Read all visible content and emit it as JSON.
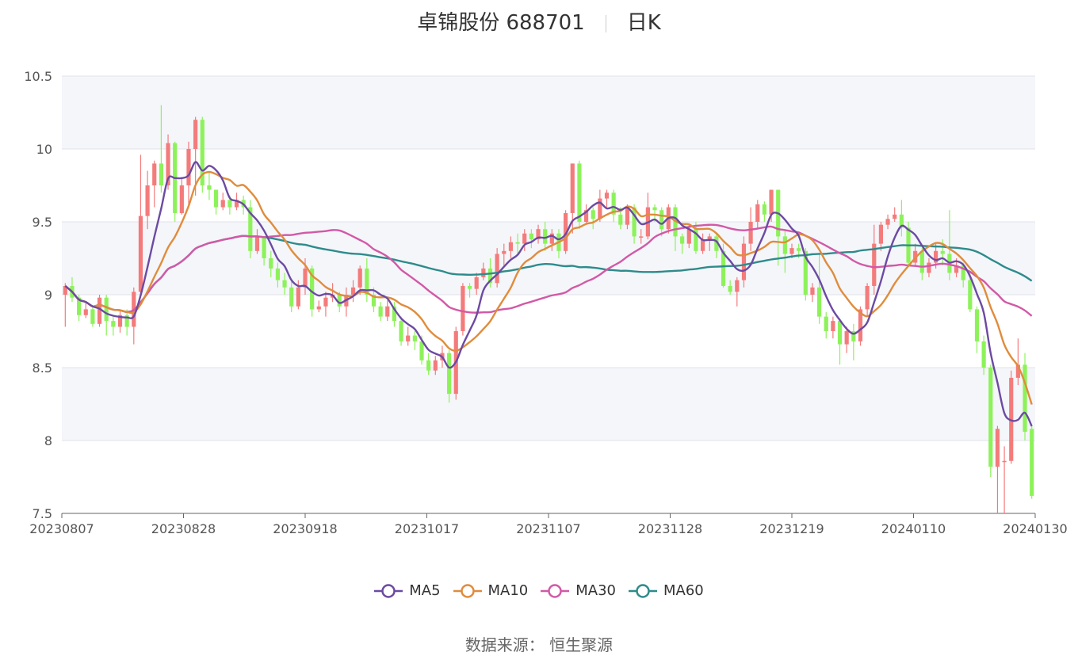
{
  "title": {
    "name": "卓锦股份 688701",
    "period": "日K"
  },
  "source_label": "数据来源：  恒生聚源",
  "colors": {
    "up": "#f47b7b",
    "down": "#8df25a",
    "ma5": "#6c4aa2",
    "ma10": "#e08c3c",
    "ma30": "#d259a6",
    "ma60": "#2e8b8b",
    "grid_band": "#f4f6fa",
    "grid_line": "#dfe3ea"
  },
  "chart_data": {
    "type": "candlestick",
    "x_ticks": [
      "20230807",
      "20230828",
      "20230918",
      "20231017",
      "20231107",
      "20231128",
      "20231219",
      "20240110",
      "20240130"
    ],
    "y_ticks": [
      "7.5",
      "8",
      "8.5",
      "9",
      "9.5",
      "10",
      "10.5"
    ],
    "ylim": [
      7.5,
      10.5
    ],
    "legend": [
      "MA5",
      "MA10",
      "MA30",
      "MA60"
    ],
    "candles": [
      [
        9.0,
        9.06,
        8.78,
        9.08
      ],
      [
        9.06,
        8.98,
        8.95,
        9.12
      ],
      [
        8.98,
        8.86,
        8.82,
        9.0
      ],
      [
        8.86,
        8.9,
        8.84,
        8.95
      ],
      [
        8.9,
        8.8,
        8.78,
        8.92
      ],
      [
        8.8,
        8.98,
        8.78,
        9.0
      ],
      [
        8.98,
        8.82,
        8.72,
        9.0
      ],
      [
        8.82,
        8.78,
        8.72,
        8.85
      ],
      [
        8.78,
        8.86,
        8.74,
        8.9
      ],
      [
        8.86,
        8.78,
        8.72,
        8.9
      ],
      [
        8.78,
        9.02,
        8.66,
        9.05
      ],
      [
        9.02,
        9.54,
        9.0,
        9.96
      ],
      [
        9.54,
        9.75,
        9.45,
        9.85
      ],
      [
        9.75,
        9.9,
        9.6,
        9.92
      ],
      [
        9.9,
        9.75,
        9.7,
        10.3
      ],
      [
        9.75,
        10.04,
        9.72,
        10.1
      ],
      [
        10.04,
        9.56,
        9.5,
        10.05
      ],
      [
        9.56,
        9.75,
        9.55,
        9.8
      ],
      [
        9.75,
        10.0,
        9.6,
        10.05
      ],
      [
        10.0,
        10.2,
        9.68,
        10.22
      ],
      [
        10.2,
        9.75,
        9.7,
        10.22
      ],
      [
        9.75,
        9.72,
        9.65,
        9.85
      ],
      [
        9.72,
        9.6,
        9.55,
        9.72
      ],
      [
        9.6,
        9.65,
        9.58,
        9.7
      ],
      [
        9.65,
        9.6,
        9.55,
        9.68
      ],
      [
        9.6,
        9.65,
        9.58,
        9.7
      ],
      [
        9.65,
        9.6,
        9.55,
        9.68
      ],
      [
        9.6,
        9.3,
        9.25,
        9.65
      ],
      [
        9.3,
        9.4,
        9.28,
        9.45
      ],
      [
        9.4,
        9.25,
        9.2,
        9.4
      ],
      [
        9.25,
        9.18,
        9.12,
        9.3
      ],
      [
        9.18,
        9.1,
        9.05,
        9.22
      ],
      [
        9.1,
        9.05,
        9.0,
        9.15
      ],
      [
        9.05,
        8.92,
        8.88,
        9.1
      ],
      [
        8.92,
        9.05,
        8.9,
        9.1
      ],
      [
        9.05,
        9.18,
        9.0,
        9.25
      ],
      [
        9.18,
        8.9,
        8.85,
        9.2
      ],
      [
        8.9,
        8.92,
        8.88,
        8.96
      ],
      [
        8.92,
        8.98,
        8.85,
        9.02
      ],
      [
        8.98,
        9.0,
        8.95,
        9.08
      ],
      [
        9.0,
        8.92,
        8.88,
        9.02
      ],
      [
        8.92,
        9.0,
        8.85,
        9.05
      ],
      [
        9.0,
        9.05,
        8.95,
        9.1
      ],
      [
        9.05,
        9.18,
        9.0,
        9.2
      ],
      [
        9.18,
        9.0,
        8.95,
        9.25
      ],
      [
        9.0,
        8.92,
        8.88,
        9.05
      ],
      [
        8.92,
        8.85,
        8.82,
        8.95
      ],
      [
        8.85,
        8.92,
        8.82,
        8.96
      ],
      [
        8.92,
        8.82,
        8.78,
        8.95
      ],
      [
        8.82,
        8.68,
        8.65,
        8.85
      ],
      [
        8.68,
        8.72,
        8.65,
        8.78
      ],
      [
        8.72,
        8.68,
        8.62,
        8.75
      ],
      [
        8.68,
        8.55,
        8.52,
        8.72
      ],
      [
        8.55,
        8.48,
        8.45,
        8.6
      ],
      [
        8.48,
        8.55,
        8.45,
        8.58
      ],
      [
        8.55,
        8.6,
        8.5,
        8.65
      ],
      [
        8.6,
        8.32,
        8.26,
        8.62
      ],
      [
        8.32,
        8.75,
        8.28,
        8.78
      ],
      [
        8.75,
        9.06,
        8.72,
        9.08
      ],
      [
        9.06,
        9.04,
        8.98,
        9.08
      ],
      [
        9.04,
        9.12,
        9.0,
        9.15
      ],
      [
        9.12,
        9.18,
        9.1,
        9.22
      ],
      [
        9.18,
        9.08,
        9.05,
        9.25
      ],
      [
        9.08,
        9.28,
        9.05,
        9.32
      ],
      [
        9.28,
        9.3,
        9.2,
        9.35
      ],
      [
        9.3,
        9.36,
        9.25,
        9.4
      ],
      [
        9.36,
        9.35,
        9.28,
        9.42
      ],
      [
        9.35,
        9.42,
        9.3,
        9.45
      ],
      [
        9.42,
        9.38,
        9.32,
        9.45
      ],
      [
        9.38,
        9.45,
        9.35,
        9.48
      ],
      [
        9.45,
        9.35,
        9.3,
        9.5
      ],
      [
        9.35,
        9.42,
        9.3,
        9.45
      ],
      [
        9.42,
        9.3,
        9.25,
        9.45
      ],
      [
        9.3,
        9.56,
        9.28,
        9.58
      ],
      [
        9.56,
        9.9,
        9.42,
        9.9
      ],
      [
        9.9,
        9.5,
        9.45,
        9.92
      ],
      [
        9.5,
        9.58,
        9.48,
        9.62
      ],
      [
        9.58,
        9.52,
        9.45,
        9.6
      ],
      [
        9.52,
        9.66,
        9.5,
        9.72
      ],
      [
        9.66,
        9.7,
        9.6,
        9.72
      ],
      [
        9.7,
        9.55,
        9.5,
        9.72
      ],
      [
        9.55,
        9.48,
        9.45,
        9.6
      ],
      [
        9.48,
        9.6,
        9.45,
        9.62
      ],
      [
        9.6,
        9.4,
        9.35,
        9.62
      ],
      [
        9.4,
        9.4,
        9.35,
        9.45
      ],
      [
        9.4,
        9.6,
        9.38,
        9.7
      ],
      [
        9.6,
        9.58,
        9.5,
        9.62
      ],
      [
        9.58,
        9.45,
        9.4,
        9.6
      ],
      [
        9.45,
        9.6,
        9.42,
        9.62
      ],
      [
        9.6,
        9.4,
        9.3,
        9.62
      ],
      [
        9.4,
        9.35,
        9.28,
        9.42
      ],
      [
        9.35,
        9.45,
        9.32,
        9.48
      ],
      [
        9.45,
        9.3,
        9.28,
        9.5
      ],
      [
        9.3,
        9.38,
        9.28,
        9.42
      ],
      [
        9.38,
        9.4,
        9.3,
        9.42
      ],
      [
        9.4,
        9.3,
        9.25,
        9.42
      ],
      [
        9.3,
        9.06,
        9.05,
        9.35
      ],
      [
        9.06,
        9.02,
        9.0,
        9.1
      ],
      [
        9.02,
        9.1,
        8.92,
        9.12
      ],
      [
        9.1,
        9.35,
        9.05,
        9.4
      ],
      [
        9.35,
        9.5,
        9.3,
        9.6
      ],
      [
        9.5,
        9.62,
        9.45,
        9.65
      ],
      [
        9.62,
        9.55,
        9.5,
        9.64
      ],
      [
        9.55,
        9.72,
        9.5,
        9.72
      ],
      [
        9.72,
        9.4,
        9.2,
        9.72
      ],
      [
        9.4,
        9.28,
        9.15,
        9.45
      ],
      [
        9.28,
        9.32,
        9.25,
        9.35
      ],
      [
        9.32,
        9.3,
        9.25,
        9.35
      ],
      [
        9.3,
        9.0,
        8.96,
        9.32
      ],
      [
        9.0,
        9.05,
        8.95,
        9.08
      ],
      [
        9.05,
        8.85,
        8.8,
        9.28
      ],
      [
        8.85,
        8.75,
        8.7,
        8.88
      ],
      [
        8.75,
        8.82,
        8.7,
        8.85
      ],
      [
        8.82,
        8.66,
        8.52,
        8.84
      ],
      [
        8.66,
        8.75,
        8.6,
        8.78
      ],
      [
        8.75,
        8.68,
        8.55,
        8.8
      ],
      [
        8.68,
        8.9,
        8.65,
        8.92
      ],
      [
        8.9,
        9.06,
        8.85,
        9.08
      ],
      [
        9.06,
        9.35,
        9.0,
        9.48
      ],
      [
        9.35,
        9.48,
        9.3,
        9.5
      ],
      [
        9.48,
        9.52,
        9.45,
        9.55
      ],
      [
        9.52,
        9.55,
        9.5,
        9.6
      ],
      [
        9.55,
        9.46,
        9.4,
        9.65
      ],
      [
        9.46,
        9.22,
        9.2,
        9.5
      ],
      [
        9.22,
        9.3,
        9.2,
        9.35
      ],
      [
        9.3,
        9.15,
        9.1,
        9.32
      ],
      [
        9.15,
        9.22,
        9.12,
        9.25
      ],
      [
        9.22,
        9.3,
        9.18,
        9.35
      ],
      [
        9.3,
        9.28,
        9.2,
        9.38
      ],
      [
        9.28,
        9.15,
        9.1,
        9.58
      ],
      [
        9.15,
        9.2,
        9.12,
        9.25
      ],
      [
        9.2,
        9.1,
        9.05,
        9.22
      ],
      [
        9.1,
        8.9,
        8.88,
        9.15
      ],
      [
        8.9,
        8.68,
        8.6,
        8.92
      ],
      [
        8.68,
        8.5,
        8.45,
        8.72
      ],
      [
        8.5,
        7.82,
        7.75,
        8.52
      ],
      [
        7.82,
        8.08,
        7.5,
        8.1
      ],
      [
        7.86,
        7.86,
        7.5,
        7.96
      ],
      [
        7.86,
        8.43,
        7.84,
        8.48
      ],
      [
        8.43,
        8.52,
        8.38,
        8.7
      ],
      [
        8.52,
        8.06,
        8.0,
        8.6
      ],
      [
        8.08,
        7.62,
        7.6,
        8.1
      ]
    ]
  }
}
